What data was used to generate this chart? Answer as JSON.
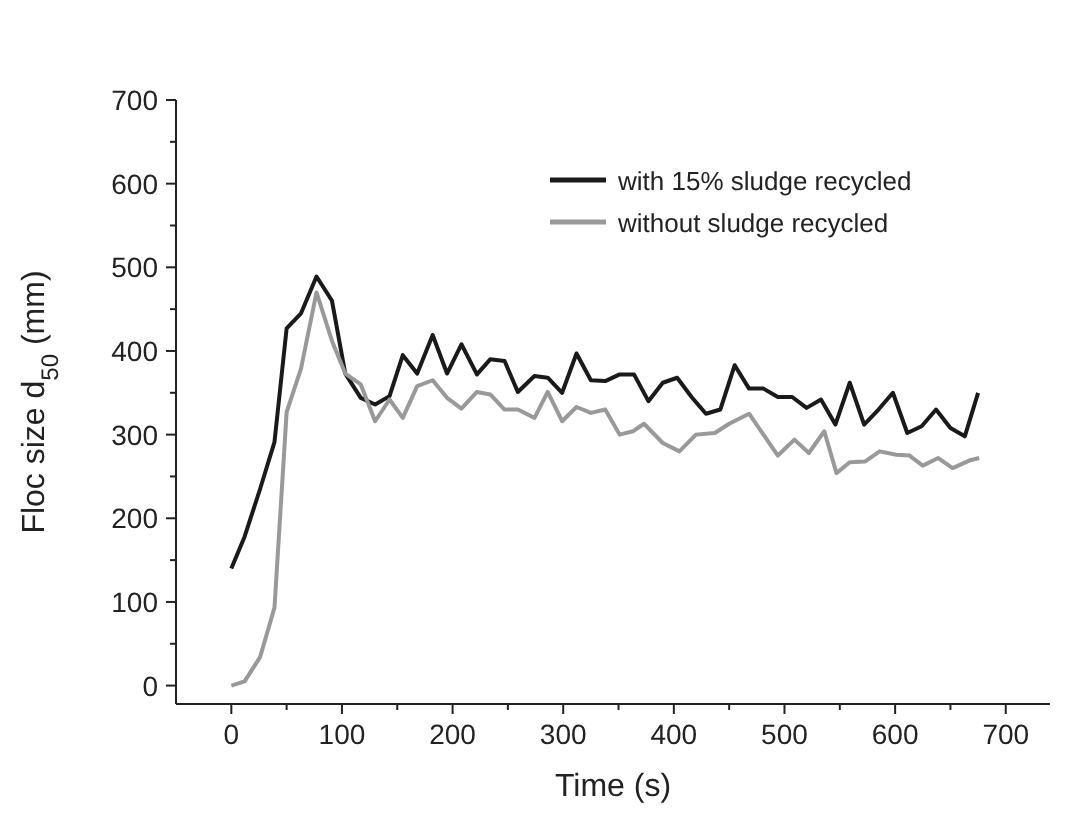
{
  "chart_data": {
    "type": "line",
    "xlabel": "Time (s)",
    "ylabel": "Floc size d$_{50}$ (mm)",
    "xlim": [
      -50,
      740
    ],
    "ylim": [
      -22,
      700
    ],
    "xticks": [
      0,
      100,
      200,
      300,
      400,
      500,
      600,
      700
    ],
    "yticks": [
      0,
      100,
      200,
      300,
      400,
      500,
      600,
      700
    ],
    "legend": "top right",
    "grid": false,
    "marker": "none",
    "line_style": "solid",
    "series": [
      {
        "name": "with 15% sludge recycled",
        "color": "#1a1a1a",
        "x": [
          0,
          12,
          26,
          39,
          50,
          63,
          77,
          91,
          103,
          117,
          130,
          143,
          155,
          168,
          182,
          195,
          208,
          222,
          234,
          247,
          259,
          274,
          286,
          299,
          312,
          325,
          338,
          351,
          364,
          377,
          390,
          403,
          416,
          429,
          442,
          455,
          468,
          481,
          494,
          507,
          520,
          533,
          546,
          559,
          572,
          585,
          598,
          611,
          624,
          637,
          650,
          663,
          675
        ],
        "values": [
          140,
          178,
          235,
          291,
          427,
          445,
          489,
          460,
          373,
          344,
          336,
          346,
          395,
          373,
          419,
          373,
          408,
          372,
          390,
          388,
          351,
          370,
          368,
          350,
          397,
          365,
          364,
          372,
          372,
          340,
          362,
          368,
          345,
          325,
          330,
          383,
          355,
          355,
          345,
          345,
          332,
          342,
          312,
          362,
          312,
          330,
          350,
          302,
          310,
          330,
          308,
          298,
          350
        ]
      },
      {
        "name": "without sludge recycled",
        "color": "#999999",
        "x": [
          0,
          12,
          26,
          39,
          50,
          63,
          77,
          91,
          103,
          117,
          130,
          143,
          155,
          168,
          182,
          195,
          208,
          222,
          234,
          247,
          259,
          274,
          286,
          299,
          312,
          325,
          338,
          351,
          363,
          373,
          390,
          405,
          420,
          437,
          450,
          468,
          494,
          509,
          522,
          536,
          547,
          559,
          573,
          586,
          601,
          613,
          625,
          639,
          652,
          667,
          676
        ],
        "values": [
          0,
          5,
          34,
          93,
          327,
          379,
          470,
          412,
          373,
          360,
          316,
          342,
          320,
          358,
          365,
          344,
          331,
          351,
          348,
          330,
          330,
          320,
          351,
          316,
          333,
          326,
          330,
          300,
          304,
          313,
          290,
          280,
          300,
          302,
          313,
          325,
          275,
          294,
          278,
          304,
          254,
          267,
          268,
          280,
          276,
          275,
          263,
          272,
          260,
          269,
          272
        ]
      }
    ]
  }
}
